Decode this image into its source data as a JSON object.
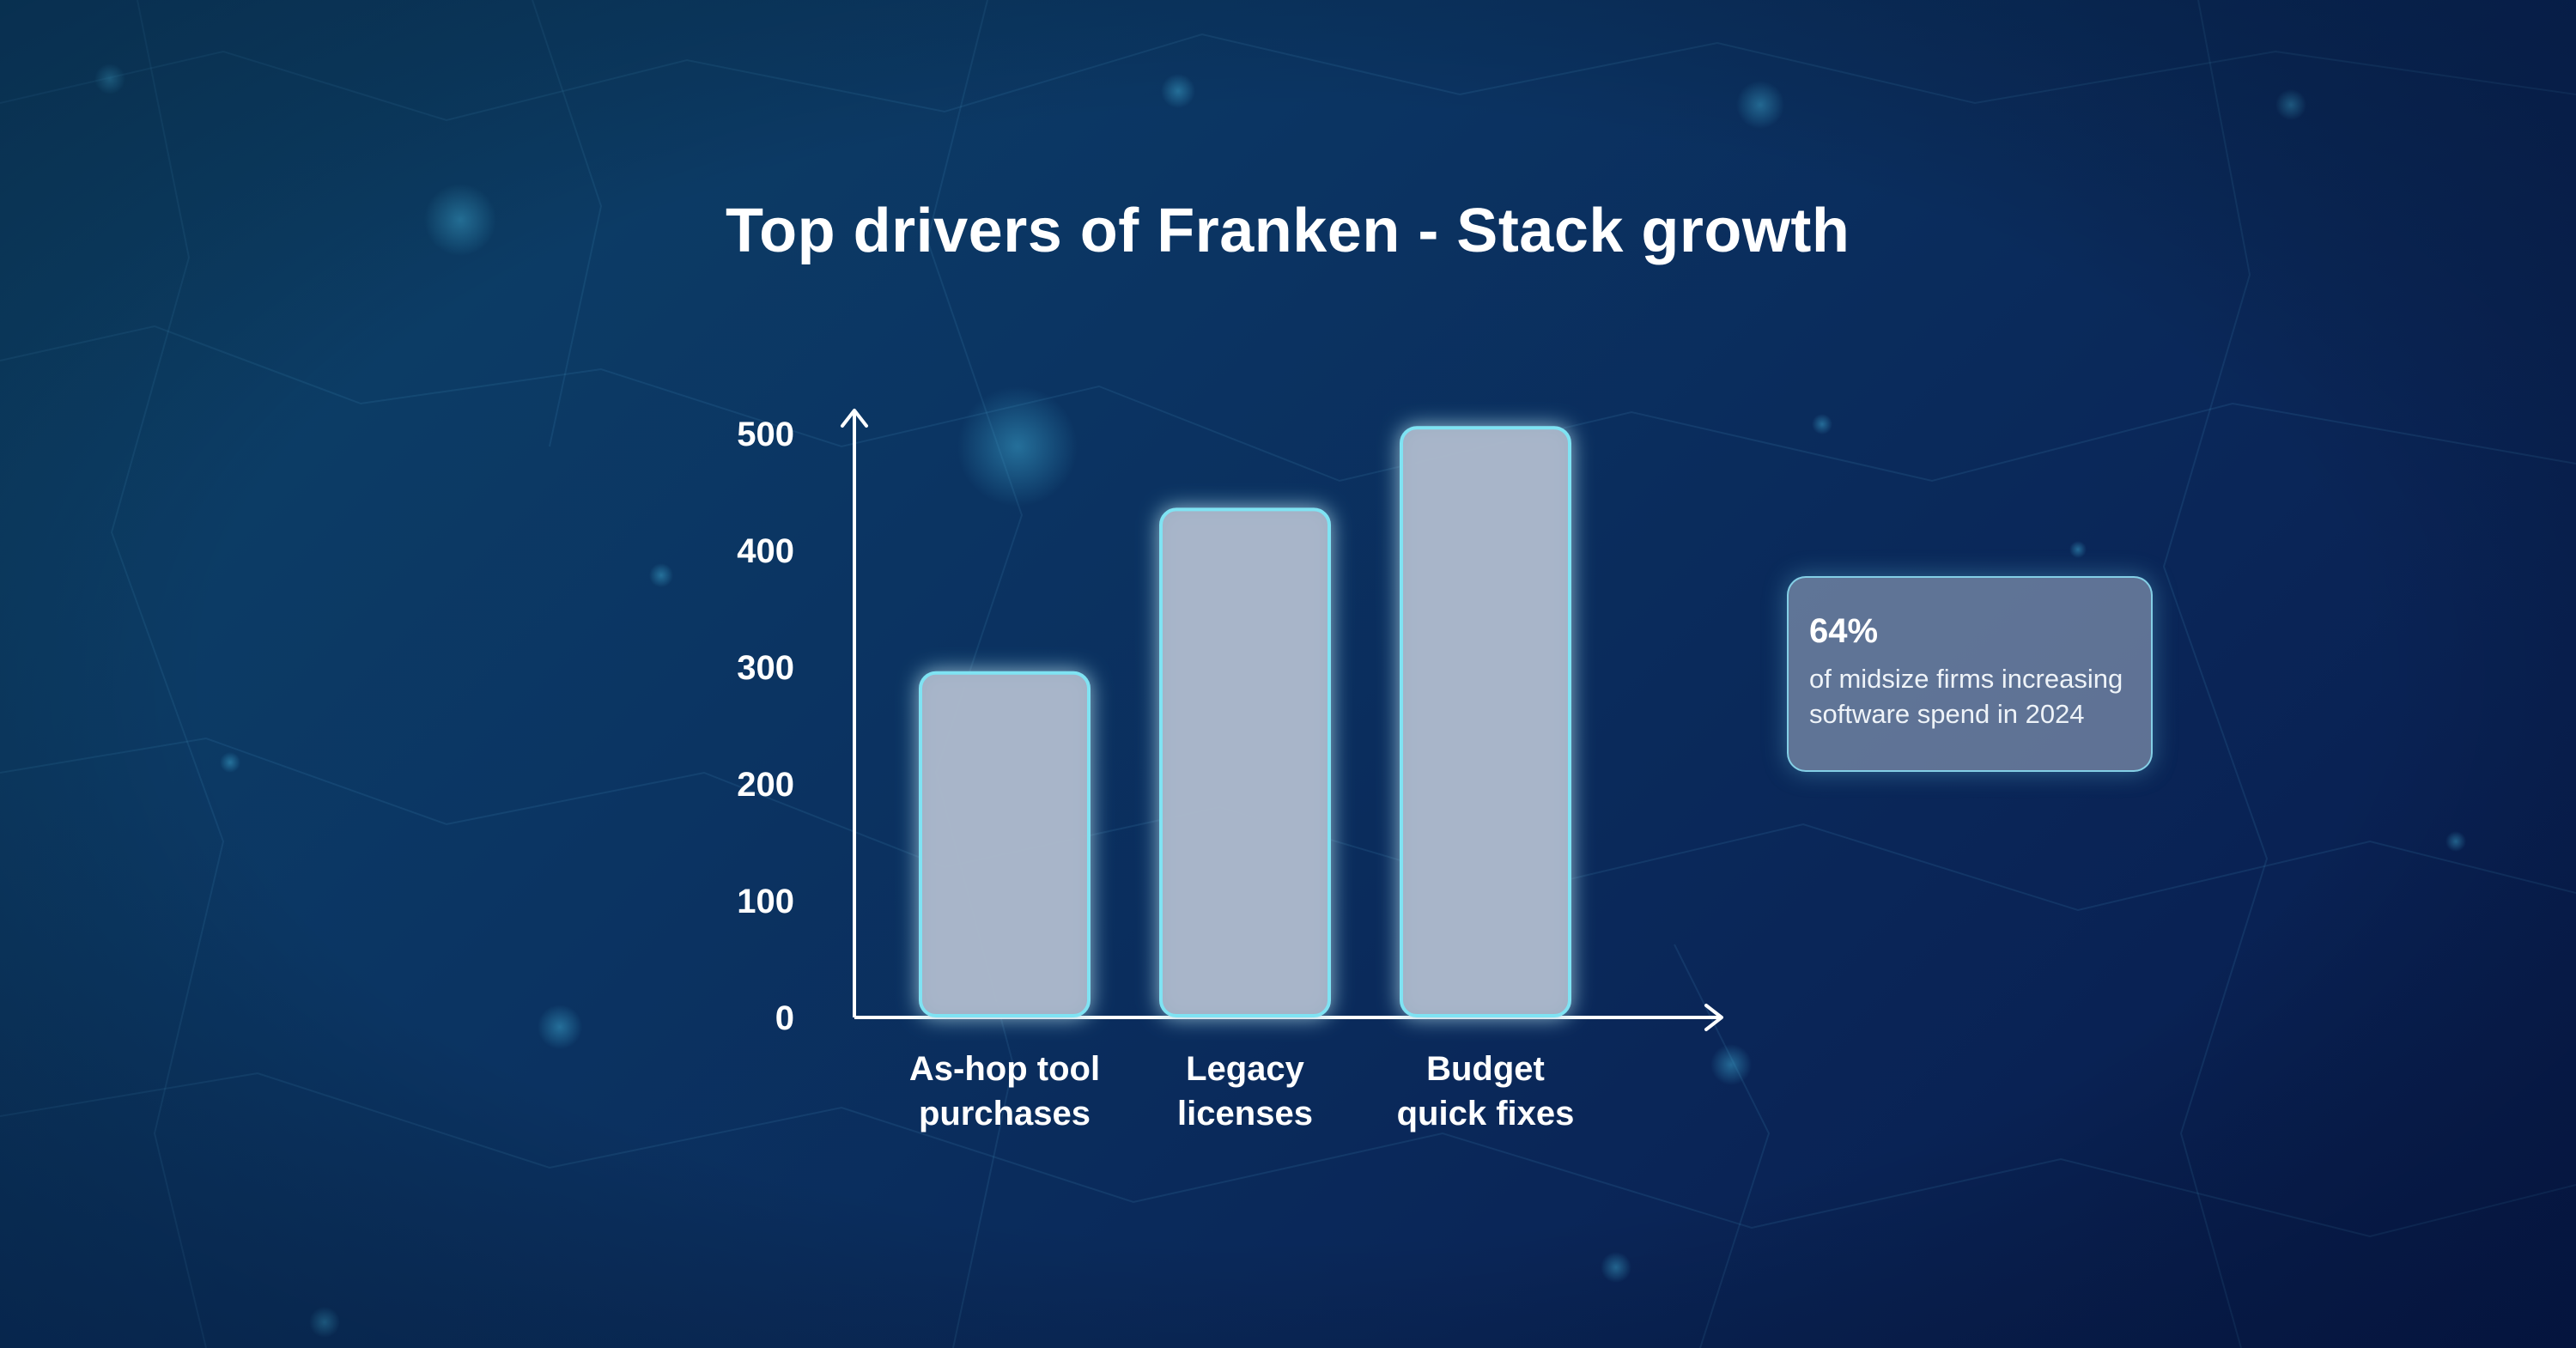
{
  "title": "Top drivers of Franken - Stack growth",
  "colors": {
    "bar_fill": "#a9b6ca",
    "bar_stroke": "#7fe3f3",
    "axis": "#ffffff",
    "background_start": "#0d4468",
    "background_end": "#071a4c"
  },
  "chart_data": {
    "type": "bar",
    "title": "Top drivers of Franken - Stack growth",
    "xlabel": "",
    "ylabel": "",
    "ylim": [
      0,
      500
    ],
    "yticks": [
      "0",
      "100",
      "200",
      "300",
      "400",
      "500"
    ],
    "categories": [
      [
        "As-hop tool",
        "purchases"
      ],
      [
        "Legacy",
        "licenses"
      ],
      [
        "Budget",
        "quick fixes"
      ]
    ],
    "values": [
      295,
      435,
      505
    ],
    "grid": false,
    "legend": "none"
  },
  "callout": {
    "value": "64%",
    "text_line1": "of midsize firms increasing",
    "text_line2": "software spend in 2024"
  }
}
